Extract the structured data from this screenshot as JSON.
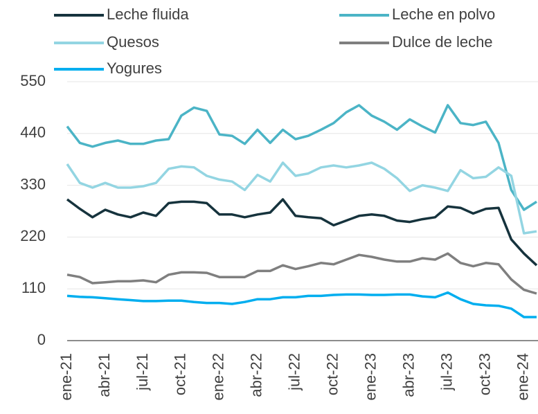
{
  "chart_data": {
    "type": "line",
    "categories": [
      "ene-21",
      null,
      null,
      "abr-21",
      null,
      null,
      "jul-21",
      null,
      null,
      "oct-21",
      null,
      null,
      "ene-22",
      null,
      null,
      "abr-22",
      null,
      null,
      "jul-22",
      null,
      null,
      "oct-22",
      null,
      null,
      "ene-23",
      null,
      null,
      "abr-23",
      null,
      null,
      "jul-23",
      null,
      null,
      "oct-23",
      null,
      null,
      "ene-24",
      null
    ],
    "series": [
      {
        "name": "Leche fluida",
        "color": "#16333d",
        "values": [
          300,
          280,
          262,
          278,
          268,
          262,
          272,
          265,
          292,
          295,
          295,
          292,
          268,
          268,
          262,
          268,
          272,
          300,
          265,
          262,
          260,
          245,
          255,
          265,
          268,
          265,
          255,
          252,
          258,
          262,
          285,
          282,
          270,
          280,
          282,
          215,
          185,
          160
        ]
      },
      {
        "name": "Leche en polvo",
        "color": "#4bb4c6",
        "values": [
          455,
          420,
          412,
          420,
          425,
          418,
          418,
          425,
          428,
          478,
          495,
          488,
          438,
          435,
          418,
          448,
          420,
          448,
          428,
          435,
          448,
          462,
          485,
          500,
          478,
          465,
          448,
          470,
          455,
          442,
          500,
          462,
          458,
          465,
          420,
          320,
          278,
          295
        ]
      },
      {
        "name": "Quesos",
        "color": "#93d5e2",
        "values": [
          375,
          335,
          325,
          335,
          325,
          325,
          328,
          335,
          365,
          370,
          368,
          350,
          342,
          338,
          320,
          352,
          338,
          378,
          350,
          355,
          368,
          372,
          368,
          372,
          378,
          365,
          345,
          318,
          330,
          325,
          318,
          362,
          345,
          348,
          368,
          350,
          228,
          232
        ]
      },
      {
        "name": "Dulce de leche",
        "color": "#7f7f7f",
        "values": [
          140,
          135,
          122,
          124,
          126,
          126,
          128,
          124,
          140,
          145,
          145,
          144,
          135,
          135,
          135,
          148,
          148,
          160,
          152,
          158,
          165,
          162,
          172,
          182,
          178,
          172,
          168,
          168,
          175,
          172,
          185,
          165,
          158,
          165,
          162,
          130,
          108,
          100
        ]
      },
      {
        "name": "Yogures",
        "color": "#00aeef",
        "values": [
          95,
          93,
          92,
          90,
          88,
          86,
          84,
          84,
          85,
          85,
          82,
          80,
          80,
          78,
          82,
          88,
          88,
          92,
          92,
          95,
          95,
          97,
          98,
          98,
          97,
          97,
          98,
          98,
          94,
          92,
          102,
          88,
          78,
          75,
          74,
          68,
          50,
          50
        ]
      }
    ],
    "ylim": [
      0,
      550
    ],
    "yticks": [
      0,
      110,
      220,
      330,
      440,
      550
    ],
    "grid": true
  }
}
